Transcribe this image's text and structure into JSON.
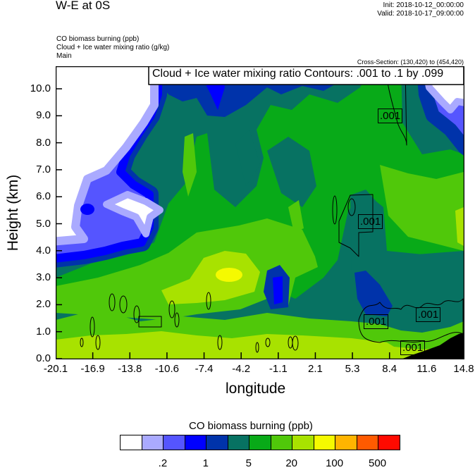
{
  "header": {
    "title": "W-E at 0S",
    "init": "Init: 2018-10-12_00:00:00",
    "valid": "Valid: 2018-10-17_09:00:00",
    "fields": [
      "CO biomass burning   (ppb)",
      "Cloud + Ice water mixing ratio   (g/kg)",
      "Main"
    ],
    "cross_section": "Cross-Section: (130,420) to (454,420)"
  },
  "chart_data": {
    "type": "heatmap",
    "title": "W-E at 0S",
    "xlabel": "longitude",
    "ylabel": "Height (km)",
    "xlim": [
      -20.1,
      14.8
    ],
    "ylim": [
      0,
      10.85
    ],
    "x_ticks": [
      "-20.1",
      "-16.9",
      "-13.8",
      "-10.6",
      "-7.4",
      "-4.2",
      "-1.1",
      "2.1",
      "5.3",
      "8.4",
      "11.6",
      "14.8"
    ],
    "y_ticks": [
      "0.0",
      "1.0",
      "2.0",
      "3.0",
      "4.0",
      "5.0",
      "6.0",
      "7.0",
      "8.0",
      "9.0",
      "10.0"
    ],
    "contour_legend": "Cloud + Ice water mixing ratio Contours: .001 to .1 by .099",
    "contour_labels": [
      ".001",
      ".001",
      ".001",
      ".001",
      ".001"
    ],
    "colorbar": {
      "title": "CO biomass burning  (ppb)",
      "colors": [
        "#FFFFFF",
        "#AAAAFF",
        "#5555FF",
        "#0000FF",
        "#0033AA",
        "#077262",
        "#08AA18",
        "#50C80A",
        "#A8E200",
        "#F5FA00",
        "#FFB400",
        "#FF5A00",
        "#FF0A00"
      ],
      "labels": [
        ".2",
        "1",
        "5",
        "20",
        "100",
        "500"
      ]
    },
    "terrain_color": "#000000"
  }
}
